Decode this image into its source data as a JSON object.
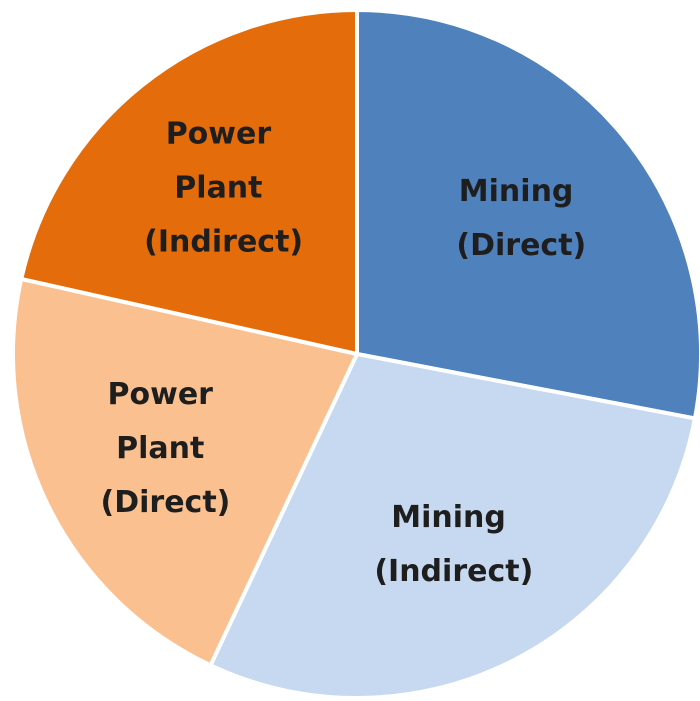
{
  "chart_data": {
    "type": "pie",
    "categories": [
      "Mining (Direct)",
      "Mining (Indirect)",
      "Power Plant (Direct)",
      "Power Plant (Indirect)"
    ],
    "values": [
      28,
      29,
      21.5,
      21.5
    ],
    "colors": [
      "#4f81bd",
      "#c6d9f1",
      "#fac090",
      "#e46c0a"
    ]
  }
}
